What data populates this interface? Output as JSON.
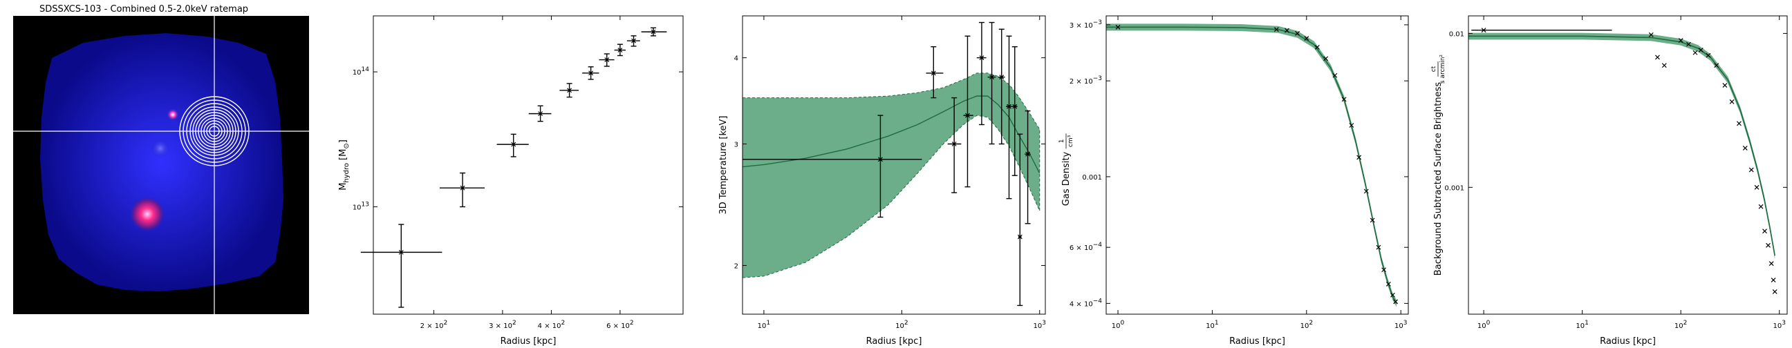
{
  "colors": {
    "fill": "#2e8b57",
    "fill_opacity": 0.7,
    "line": "#1e6b3f",
    "points": "#000000",
    "image_bg": "#000000",
    "crosshair": "#ffffff"
  },
  "chart_data": [
    {
      "type": "image",
      "title": "SDSSXCS-103 - Combined 0.5-2.0keV ratemap",
      "colormap": "black-blue-magenta-white",
      "annotations": [
        "crosshair",
        "concentric annuli"
      ]
    },
    {
      "type": "scatter",
      "title": "",
      "xlabel": "Radius [kpc]",
      "ylabel_main": "M",
      "ylabel_sub": "hydro",
      "ylabel_unit": "[M",
      "ylabel_unit_sub": "⊙",
      "ylabel_unit_end": "]",
      "xscale": "log",
      "yscale": "log",
      "xlim": [
        140,
        870
      ],
      "ylim": [
        1600000000000.0,
        260000000000000.0
      ],
      "xticks": [
        {
          "v": 200,
          "b": "2 × 10",
          "e": "2"
        },
        {
          "v": 300,
          "b": "3 × 10",
          "e": "2"
        },
        {
          "v": 400,
          "b": "4 × 10",
          "e": "2"
        },
        {
          "v": 600,
          "b": "6 × 10",
          "e": "2"
        }
      ],
      "yticks": [
        {
          "v": 10000000000000.0,
          "b": "10",
          "e": "13"
        },
        {
          "v": 100000000000000.0,
          "b": "10",
          "e": "14"
        }
      ],
      "points": [
        {
          "x": 165,
          "y": 4600000000000.0,
          "xerr": [
            130,
            210
          ],
          "yerr": [
            1800000000000.0,
            7400000000000.0
          ]
        },
        {
          "x": 237,
          "y": 13800000000000.0,
          "xerr": [
            207,
            270
          ],
          "yerr": [
            10000000000000.0,
            17800000000000.0
          ]
        },
        {
          "x": 320,
          "y": 29000000000000.0,
          "xerr": [
            290,
            350
          ],
          "yerr": [
            23500000000000.0,
            34500000000000.0
          ]
        },
        {
          "x": 375,
          "y": 49000000000000.0,
          "xerr": [
            350,
            400
          ],
          "yerr": [
            43000000000000.0,
            56000000000000.0
          ]
        },
        {
          "x": 445,
          "y": 73000000000000.0,
          "xerr": [
            420,
            470
          ],
          "yerr": [
            65000000000000.0,
            82000000000000.0
          ]
        },
        {
          "x": 505,
          "y": 98000000000000.0,
          "xerr": [
            480,
            530
          ],
          "yerr": [
            88000000000000.0,
            109000000000000.0
          ]
        },
        {
          "x": 555,
          "y": 123000000000000.0,
          "xerr": [
            530,
            580
          ],
          "yerr": [
            110000000000000.0,
            136000000000000.0
          ]
        },
        {
          "x": 600,
          "y": 145000000000000.0,
          "xerr": [
            580,
            620
          ],
          "yerr": [
            132000000000000.0,
            160000000000000.0
          ]
        },
        {
          "x": 650,
          "y": 170000000000000.0,
          "xerr": [
            625,
            675
          ],
          "yerr": [
            155000000000000.0,
            185000000000000.0
          ]
        },
        {
          "x": 730,
          "y": 198000000000000.0,
          "xerr": [
            680,
            790
          ],
          "yerr": [
            185000000000000.0,
            212000000000000.0
          ]
        }
      ]
    },
    {
      "type": "line",
      "title": "",
      "xlabel": "Radius [kpc]",
      "ylabel": "3D Temperature [keV]",
      "xscale": "log",
      "yscale": "log",
      "xlim": [
        7,
        1100
      ],
      "ylim": [
        1.7,
        4.6
      ],
      "xticks": [
        {
          "v": 10,
          "b": "10",
          "e": "1"
        },
        {
          "v": 100,
          "b": "10",
          "e": "2"
        },
        {
          "v": 1000,
          "b": "10",
          "e": "3"
        }
      ],
      "yticks": [
        {
          "v": 2,
          "label": "2"
        },
        {
          "v": 3,
          "label": "3"
        },
        {
          "v": 4,
          "label": "4"
        }
      ],
      "model_x": [
        7,
        10,
        20,
        40,
        80,
        130,
        200,
        280,
        350,
        420,
        500,
        600,
        700,
        850,
        1000
      ],
      "model_y": [
        2.78,
        2.8,
        2.86,
        2.95,
        3.08,
        3.2,
        3.34,
        3.46,
        3.52,
        3.52,
        3.42,
        3.28,
        3.1,
        2.9,
        2.72
      ],
      "band_low": [
        1.92,
        1.93,
        2.02,
        2.2,
        2.45,
        2.72,
        3.0,
        3.2,
        3.3,
        3.28,
        3.15,
        2.98,
        2.8,
        2.58,
        2.4
      ],
      "band_high": [
        3.5,
        3.5,
        3.5,
        3.5,
        3.52,
        3.56,
        3.62,
        3.72,
        3.8,
        3.8,
        3.76,
        3.66,
        3.52,
        3.32,
        3.15
      ],
      "points": [
        {
          "x": 70,
          "y": 2.85,
          "xerr": [
            7,
            140
          ],
          "yerr": [
            2.35,
            3.3
          ]
        },
        {
          "x": 170,
          "y": 3.8,
          "xerr": [
            150,
            200
          ],
          "yerr": [
            3.5,
            4.15
          ]
        },
        {
          "x": 240,
          "y": 3.0,
          "xerr": [
            215,
            270
          ],
          "yerr": [
            2.55,
            3.5
          ]
        },
        {
          "x": 300,
          "y": 3.3,
          "xerr": [
            280,
            330
          ],
          "yerr": [
            2.6,
            4.3
          ]
        },
        {
          "x": 380,
          "y": 4.0,
          "xerr": [
            350,
            410
          ],
          "yerr": [
            3.2,
            4.5
          ]
        },
        {
          "x": 450,
          "y": 3.75,
          "xerr": [
            420,
            480
          ],
          "yerr": [
            3.0,
            4.5
          ]
        },
        {
          "x": 530,
          "y": 3.75,
          "xerr": [
            500,
            560
          ],
          "yerr": [
            3.0,
            4.4
          ]
        },
        {
          "x": 600,
          "y": 3.4,
          "xerr": [
            570,
            630
          ],
          "yerr": [
            2.5,
            4.3
          ]
        },
        {
          "x": 660,
          "y": 3.4,
          "xerr": [
            630,
            690
          ],
          "yerr": [
            2.7,
            4.15
          ]
        },
        {
          "x": 720,
          "y": 2.2,
          "xerr": [
            700,
            740
          ],
          "yerr": [
            1.75,
            3.1
          ]
        },
        {
          "x": 820,
          "y": 2.9,
          "xerr": [
            780,
            860
          ],
          "yerr": [
            2.3,
            3.35
          ]
        }
      ]
    },
    {
      "type": "line",
      "title": "",
      "xlabel": "Radius [kpc]",
      "ylabel_main": "Gas Density",
      "ylabel_unit_num": "1",
      "ylabel_unit_den": "cm³",
      "xscale": "log",
      "yscale": "log",
      "xlim": [
        0.75,
        1200
      ],
      "ylim": [
        0.00037,
        0.0032
      ],
      "xticks": [
        {
          "v": 1,
          "b": "10",
          "e": "0"
        },
        {
          "v": 10,
          "b": "10",
          "e": "1"
        },
        {
          "v": 100,
          "b": "10",
          "e": "2"
        },
        {
          "v": 1000,
          "b": "10",
          "e": "3"
        }
      ],
      "yticks": [
        {
          "v": 0.0004,
          "b": "4 × 10",
          "e": "−4"
        },
        {
          "v": 0.0006,
          "b": "6 × 10",
          "e": "−4"
        },
        {
          "v": 0.001,
          "label": "0.001"
        },
        {
          "v": 0.002,
          "b": "2 × 10",
          "e": "−3"
        },
        {
          "v": 0.003,
          "b": "3 × 10",
          "e": "−3"
        }
      ],
      "model_x": [
        0.75,
        1,
        5,
        20,
        50,
        80,
        120,
        180,
        250,
        330,
        420,
        520,
        620,
        720,
        820,
        900
      ],
      "model_y": [
        0.00295,
        0.00295,
        0.00295,
        0.00294,
        0.0029,
        0.0028,
        0.0026,
        0.0022,
        0.00175,
        0.0013,
        0.00095,
        0.0007,
        0.00055,
        0.00047,
        0.00042,
        0.0004
      ],
      "points": [
        {
          "x": 1,
          "y": 0.00295
        },
        {
          "x": 48,
          "y": 0.0029
        },
        {
          "x": 62,
          "y": 0.00288
        },
        {
          "x": 80,
          "y": 0.00282
        },
        {
          "x": 100,
          "y": 0.00272
        },
        {
          "x": 130,
          "y": 0.00255
        },
        {
          "x": 160,
          "y": 0.00235
        },
        {
          "x": 200,
          "y": 0.00208
        },
        {
          "x": 250,
          "y": 0.00175
        },
        {
          "x": 300,
          "y": 0.00145
        },
        {
          "x": 360,
          "y": 0.00115
        },
        {
          "x": 430,
          "y": 0.0009
        },
        {
          "x": 500,
          "y": 0.00073
        },
        {
          "x": 580,
          "y": 0.0006
        },
        {
          "x": 660,
          "y": 0.00051
        },
        {
          "x": 740,
          "y": 0.00046
        },
        {
          "x": 820,
          "y": 0.000425
        },
        {
          "x": 880,
          "y": 0.000405
        }
      ]
    },
    {
      "type": "line",
      "title": "",
      "xlabel": "Radius [kpc]",
      "ylabel_main": "Background Subtracted Surface Brightness",
      "ylabel_unit_num": "ct",
      "ylabel_unit_den": "s arcmin²",
      "xscale": "log",
      "yscale": "log",
      "xlim": [
        0.7,
        1200
      ],
      "ylim": [
        0.00015,
        0.013
      ],
      "xticks": [
        {
          "v": 1,
          "b": "10",
          "e": "0"
        },
        {
          "v": 10,
          "b": "10",
          "e": "1"
        },
        {
          "v": 100,
          "b": "10",
          "e": "2"
        },
        {
          "v": 1000,
          "b": "10",
          "e": "3"
        }
      ],
      "yticks": [
        {
          "v": 0.001,
          "label": "0.001"
        },
        {
          "v": 0.01,
          "label": "0.01"
        }
      ],
      "model_x": [
        0.7,
        1,
        10,
        50,
        100,
        150,
        200,
        300,
        400,
        500,
        600,
        700,
        800,
        900
      ],
      "model_y": [
        0.0096,
        0.0096,
        0.0096,
        0.0094,
        0.0088,
        0.008,
        0.007,
        0.005,
        0.0032,
        0.002,
        0.0013,
        0.00085,
        0.00055,
        0.00036
      ],
      "points": [
        {
          "x": 1,
          "y": 0.0105,
          "xerr": [
            0.75,
            20
          ]
        },
        {
          "x": 50,
          "y": 0.0098
        },
        {
          "x": 58,
          "y": 0.007
        },
        {
          "x": 68,
          "y": 0.0062
        },
        {
          "x": 100,
          "y": 0.009
        },
        {
          "x": 120,
          "y": 0.0085
        },
        {
          "x": 140,
          "y": 0.0075
        },
        {
          "x": 160,
          "y": 0.0078
        },
        {
          "x": 190,
          "y": 0.0072
        },
        {
          "x": 230,
          "y": 0.0062
        },
        {
          "x": 280,
          "y": 0.0046
        },
        {
          "x": 330,
          "y": 0.0036
        },
        {
          "x": 390,
          "y": 0.0026
        },
        {
          "x": 450,
          "y": 0.0018
        },
        {
          "x": 520,
          "y": 0.0013
        },
        {
          "x": 590,
          "y": 0.001
        },
        {
          "x": 650,
          "y": 0.00075
        },
        {
          "x": 710,
          "y": 0.00052
        },
        {
          "x": 770,
          "y": 0.00042
        },
        {
          "x": 830,
          "y": 0.00032
        },
        {
          "x": 870,
          "y": 0.00025
        },
        {
          "x": 900,
          "y": 0.00021
        }
      ]
    }
  ]
}
